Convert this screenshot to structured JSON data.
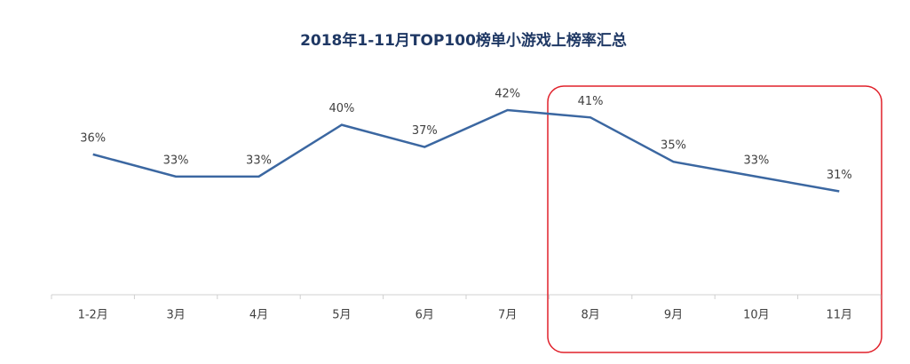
{
  "chart_data": {
    "type": "line",
    "title": "2018年1-11月TOP100榜单小游戏上榜率汇总",
    "categories": [
      "1-2月",
      "3月",
      "4月",
      "5月",
      "6月",
      "7月",
      "8月",
      "9月",
      "10月",
      "11月"
    ],
    "series": [
      {
        "name": "上榜率",
        "color": "#3b67a1",
        "values": [
          36,
          33,
          33,
          40,
          37,
          42,
          41,
          35,
          33,
          31
        ],
        "value_labels": [
          "36%",
          "33%",
          "33%",
          "40%",
          "37%",
          "42%",
          "41%",
          "35%",
          "33%",
          "31%"
        ]
      }
    ],
    "ylim": [
      17,
      45
    ]
  }
}
